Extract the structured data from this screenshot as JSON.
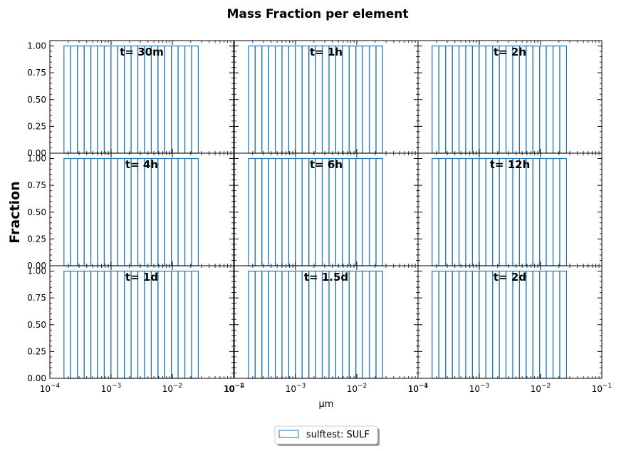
{
  "chart_data": {
    "type": "bar",
    "title": "Mass Fraction per element",
    "xlabel": "μm",
    "ylabel": "Fraction",
    "xscale": "log",
    "xlim": [
      0.0001,
      0.1
    ],
    "ylim": [
      0,
      1.05
    ],
    "xticks": [
      0.0001,
      0.001,
      0.01,
      0.1
    ],
    "xtick_mantissa": "10",
    "xtick_exponents": [
      "−4",
      "−3",
      "−2",
      "−1"
    ],
    "yticks": [
      "0.00",
      "0.25",
      "0.50",
      "0.75",
      "1.00"
    ],
    "ytick_values": [
      0,
      0.25,
      0.5,
      0.75,
      1.0
    ],
    "bin_edges": [
      0.00017,
      0.000219,
      0.000282,
      0.000363,
      0.000467,
      0.000601,
      0.000774,
      0.000996,
      0.00128,
      0.00165,
      0.00212,
      0.00273,
      0.00352,
      0.00453,
      0.00583,
      0.0075,
      0.00966,
      0.0124,
      0.016,
      0.0206,
      0.0265
    ],
    "bar_value": 1.0,
    "series_color": "#1f77b4",
    "legend": {
      "label": "sulftest: SULF",
      "placement": "lower center"
    },
    "grid": false,
    "panels": [
      {
        "title": "t= 30m"
      },
      {
        "title": "t= 1h"
      },
      {
        "title": "t= 2h"
      },
      {
        "title": "t= 4h"
      },
      {
        "title": "t= 6h"
      },
      {
        "title": "t= 12h"
      },
      {
        "title": "t= 1d"
      },
      {
        "title": "t= 1.5d"
      },
      {
        "title": "t= 2d"
      }
    ]
  }
}
